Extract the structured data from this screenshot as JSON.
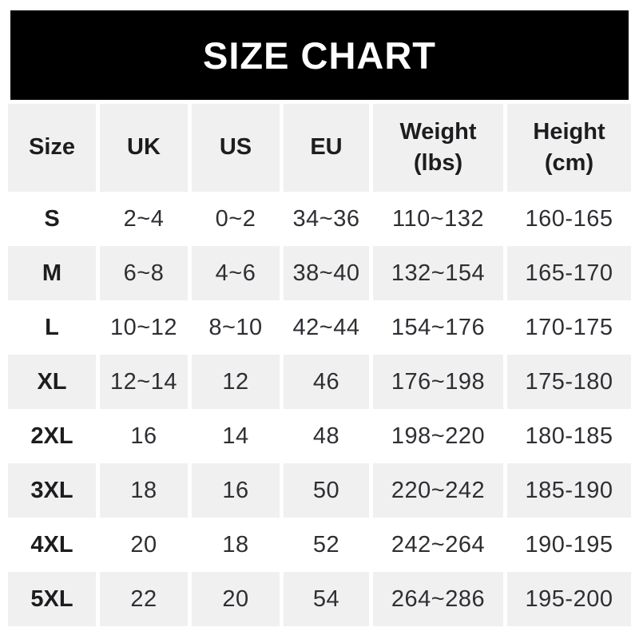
{
  "banner": {
    "title": "SIZE CHART",
    "bg_color": "#000000",
    "text_color": "#ffffff"
  },
  "table": {
    "columns": [
      {
        "key": "size",
        "label": "Size"
      },
      {
        "key": "uk",
        "label": "UK"
      },
      {
        "key": "us",
        "label": "US"
      },
      {
        "key": "eu",
        "label": "EU"
      },
      {
        "key": "weight",
        "label": "Weight\n(lbs)"
      },
      {
        "key": "height",
        "label": "Height\n(cm)"
      }
    ],
    "rows": [
      {
        "size": "S",
        "uk": "2~4",
        "us": "0~2",
        "eu": "34~36",
        "weight": "110~132",
        "height": "160-165"
      },
      {
        "size": "M",
        "uk": "6~8",
        "us": "4~6",
        "eu": "38~40",
        "weight": "132~154",
        "height": "165-170"
      },
      {
        "size": "L",
        "uk": "10~12",
        "us": "8~10",
        "eu": "42~44",
        "weight": "154~176",
        "height": "170-175"
      },
      {
        "size": "XL",
        "uk": "12~14",
        "us": "12",
        "eu": "46",
        "weight": "176~198",
        "height": "175-180"
      },
      {
        "size": "2XL",
        "uk": "16",
        "us": "14",
        "eu": "48",
        "weight": "198~220",
        "height": "180-185"
      },
      {
        "size": "3XL",
        "uk": "18",
        "us": "16",
        "eu": "50",
        "weight": "220~242",
        "height": "185-190"
      },
      {
        "size": "4XL",
        "uk": "20",
        "us": "18",
        "eu": "52",
        "weight": "242~264",
        "height": "190-195"
      },
      {
        "size": "5XL",
        "uk": "22",
        "us": "20",
        "eu": "54",
        "weight": "264~286",
        "height": "195-200"
      }
    ],
    "colors": {
      "stripe_bg": "#f0f0f1",
      "row_bg": "#ffffff",
      "header_text": "#1d1d1f",
      "cell_text": "#2e2f33"
    }
  },
  "chart_data": {
    "type": "table",
    "title": "SIZE CHART",
    "columns": [
      "Size",
      "UK",
      "US",
      "EU",
      "Weight (lbs)",
      "Height (cm)"
    ],
    "rows": [
      [
        "S",
        "2~4",
        "0~2",
        "34~36",
        "110~132",
        "160-165"
      ],
      [
        "M",
        "6~8",
        "4~6",
        "38~40",
        "132~154",
        "165-170"
      ],
      [
        "L",
        "10~12",
        "8~10",
        "42~44",
        "154~176",
        "170-175"
      ],
      [
        "XL",
        "12~14",
        "12",
        "46",
        "176~198",
        "175-180"
      ],
      [
        "2XL",
        "16",
        "14",
        "48",
        "198~220",
        "180-185"
      ],
      [
        "3XL",
        "18",
        "16",
        "50",
        "220~242",
        "185-190"
      ],
      [
        "4XL",
        "20",
        "18",
        "52",
        "242~264",
        "190-195"
      ],
      [
        "5XL",
        "22",
        "20",
        "54",
        "264~286",
        "195-200"
      ]
    ],
    "layout_hints": {
      "striped_rows": true,
      "stripe_color": "#f0f0f1",
      "banner_bg": "#000000"
    }
  }
}
